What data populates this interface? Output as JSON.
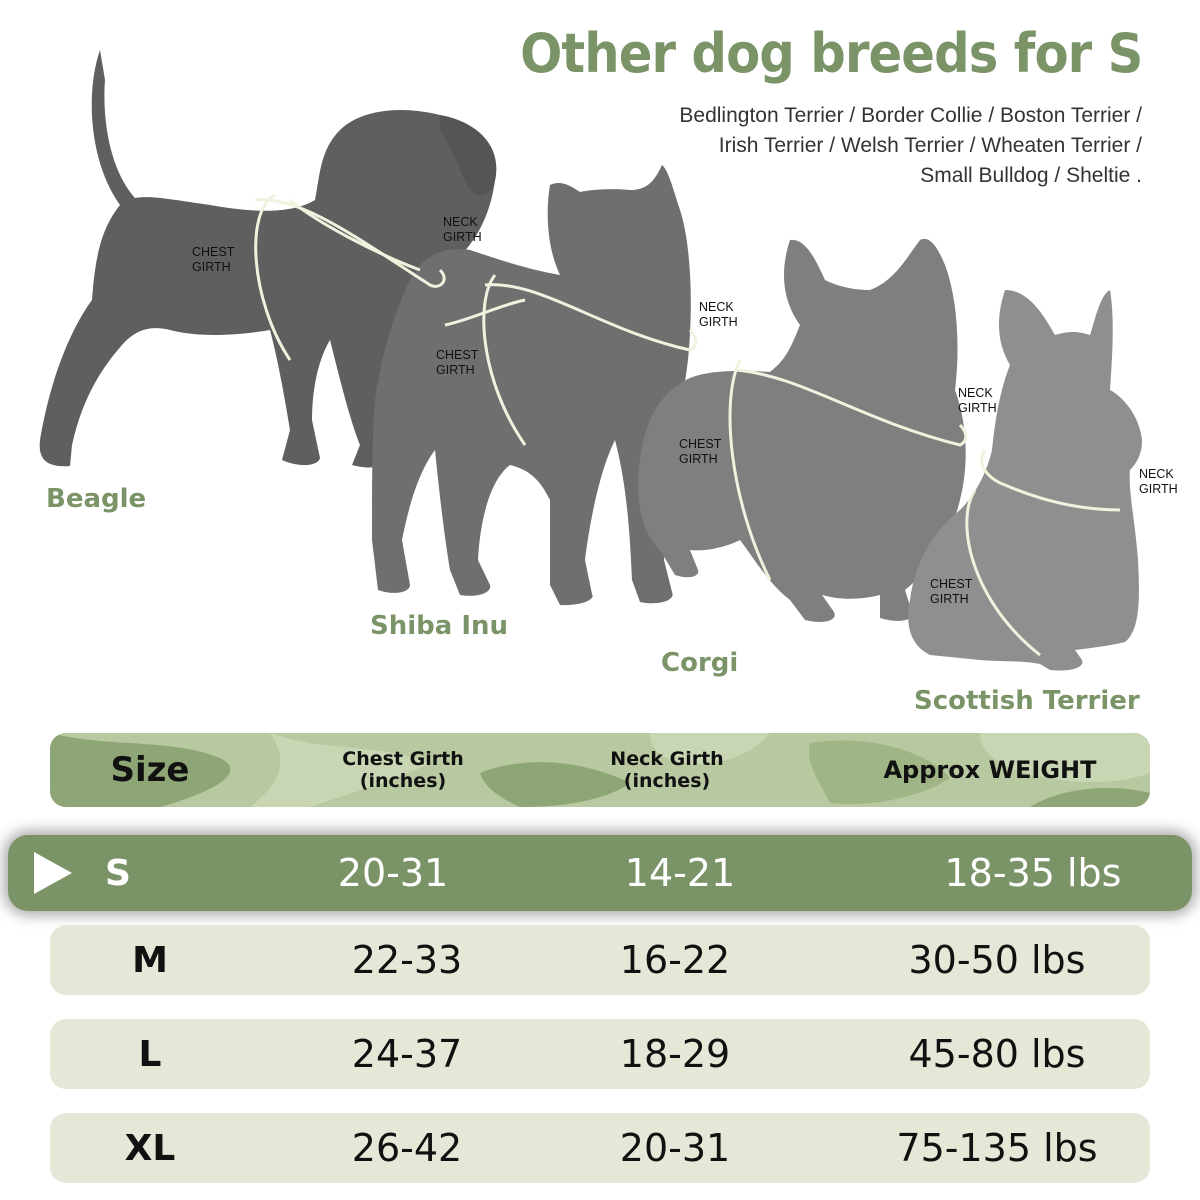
{
  "heading": {
    "title": "Other dog breeds for S",
    "breed_lines": [
      "Bedlington Terrier / Border Collie / Boston Terrier /",
      "Irish Terrier / Welsh Terrier / Wheaten Terrier /",
      "Small Bulldog / Sheltie ."
    ]
  },
  "dogs": [
    {
      "name": "Beagle",
      "chest": [
        "CHEST",
        "GIRTH"
      ],
      "neck": [
        "NECK",
        "GIRTH"
      ]
    },
    {
      "name": "Shiba Inu",
      "chest": [
        "CHEST",
        "GIRTH"
      ],
      "neck": [
        "NECK",
        "GIRTH"
      ]
    },
    {
      "name": "Corgi",
      "chest": [
        "CHEST",
        "GIRTH"
      ],
      "neck": [
        "NECK",
        "GIRTH"
      ]
    },
    {
      "name": "Scottish Terrier",
      "chest": [
        "CHEST",
        "GIRTH"
      ],
      "neck": [
        "NECK",
        "GIRTH"
      ]
    }
  ],
  "table": {
    "header": {
      "size": "Size",
      "chest": [
        "Chest Girth",
        "(inches)"
      ],
      "neck": [
        "Neck Girth",
        "(inches)"
      ],
      "weight": "Approx WEIGHT"
    },
    "rows": [
      {
        "size": "S",
        "chest": "20-31",
        "neck": "14-21",
        "weight": "18-35 lbs",
        "selected": true
      },
      {
        "size": "M",
        "chest": "22-33",
        "neck": "16-22",
        "weight": "30-50 lbs"
      },
      {
        "size": "L",
        "chest": "24-37",
        "neck": "18-29",
        "weight": "45-80 lbs"
      },
      {
        "size": "XL",
        "chest": "26-42",
        "neck": "20-31",
        "weight": "75-135 lbs"
      }
    ]
  },
  "colors": {
    "accent_green": "#7a9467",
    "row_light": "#e3e9d6",
    "camo_light": "#c9d6b4",
    "camo_mid": "#a9bd8e",
    "camo_dark": "#8ea576",
    "dog_beagle": "#5f5f5f",
    "dog_shiba": "#6f6f6f",
    "dog_corgi": "#7f7f7f",
    "dog_terrier": "#8f8f8f",
    "harness": "#eef3de"
  }
}
